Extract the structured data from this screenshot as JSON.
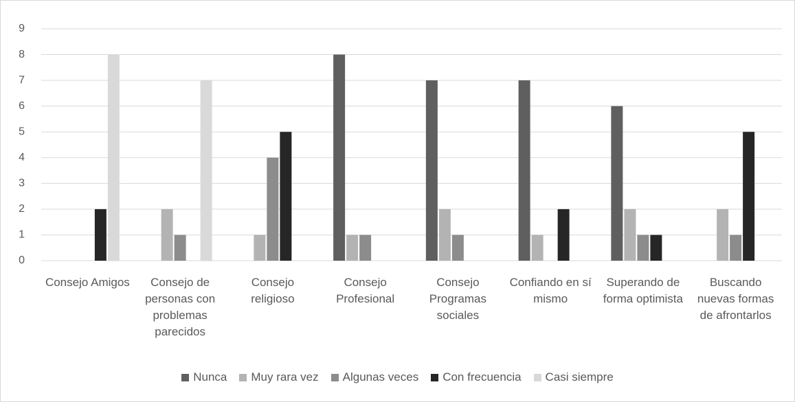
{
  "chart_data": {
    "type": "bar",
    "categories": [
      "Consejo Amigos",
      "Consejo de personas con problemas parecidos",
      "Consejo religioso",
      "Consejo Profesional",
      "Consejo Programas sociales",
      "Confiando en sí mismo",
      "Superando de forma optimista",
      "Buscando nuevas formas de afrontarlos"
    ],
    "series": [
      {
        "name": "Nunca",
        "color": "#5f5f5f",
        "values": [
          0,
          0,
          0,
          8,
          7,
          7,
          6,
          0
        ]
      },
      {
        "name": "Muy rara vez",
        "color": "#b3b3b3",
        "values": [
          0,
          2,
          1,
          1,
          2,
          1,
          2,
          2
        ]
      },
      {
        "name": "Algunas veces",
        "color": "#8c8c8c",
        "values": [
          0,
          1,
          4,
          1,
          1,
          0,
          1,
          1
        ]
      },
      {
        "name": "Con frecuencia",
        "color": "#262626",
        "values": [
          2,
          0,
          5,
          0,
          0,
          2,
          1,
          5
        ]
      },
      {
        "name": "Casi siempre",
        "color": "#d9d9d9",
        "values": [
          8,
          7,
          0,
          0,
          0,
          0,
          0,
          0
        ]
      }
    ],
    "ylim": [
      0,
      9
    ],
    "yticks": [
      0,
      1,
      2,
      3,
      4,
      5,
      6,
      7,
      8,
      9
    ],
    "grid": true,
    "legend": "bottom"
  }
}
